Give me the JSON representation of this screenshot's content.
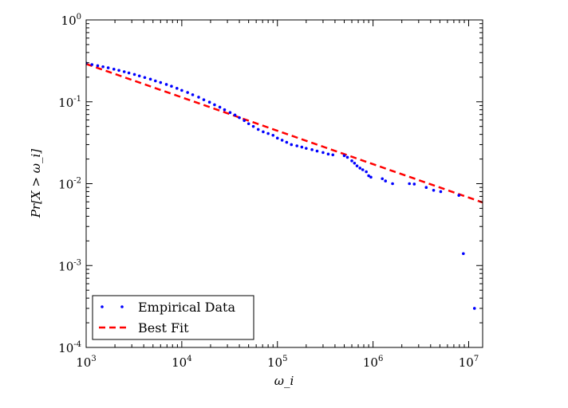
{
  "chart_data": {
    "type": "scatter",
    "title": "",
    "xlabel": "ω_i",
    "ylabel": "Pr[X > ω_i]",
    "xscale": "log",
    "yscale": "log",
    "xlim": [
      1000,
      14000000
    ],
    "ylim": [
      0.0001,
      1
    ],
    "x_ticks": [
      {
        "value": 1000,
        "base": "10",
        "exp": "3"
      },
      {
        "value": 10000,
        "base": "10",
        "exp": "4"
      },
      {
        "value": 100000,
        "base": "10",
        "exp": "5"
      },
      {
        "value": 1000000,
        "base": "10",
        "exp": "6"
      },
      {
        "value": 10000000,
        "base": "10",
        "exp": "7"
      }
    ],
    "y_ticks": [
      {
        "value": 0.0001,
        "base": "10",
        "exp": "-4"
      },
      {
        "value": 0.001,
        "base": "10",
        "exp": "-3"
      },
      {
        "value": 0.01,
        "base": "10",
        "exp": "-2"
      },
      {
        "value": 0.1,
        "base": "10",
        "exp": "-1"
      },
      {
        "value": 1,
        "base": "10",
        "exp": "0"
      }
    ],
    "legend": {
      "placement": "lower-left",
      "entries": [
        "Empirical Data",
        "Best Fit"
      ]
    },
    "series": [
      {
        "name": "Empirical Data",
        "style": "markers",
        "color": "#0000ff",
        "points": [
          [
            1000,
            0.297
          ],
          [
            1150,
            0.285
          ],
          [
            1320,
            0.276
          ],
          [
            1500,
            0.268
          ],
          [
            1700,
            0.26
          ],
          [
            1950,
            0.25
          ],
          [
            2200,
            0.242
          ],
          [
            2500,
            0.233
          ],
          [
            2800,
            0.225
          ],
          [
            3200,
            0.216
          ],
          [
            3600,
            0.207
          ],
          [
            4100,
            0.198
          ],
          [
            4700,
            0.189
          ],
          [
            5300,
            0.18
          ],
          [
            6000,
            0.172
          ],
          [
            6900,
            0.163
          ],
          [
            7800,
            0.155
          ],
          [
            8900,
            0.146
          ],
          [
            10000,
            0.138
          ],
          [
            11500,
            0.13
          ],
          [
            13000,
            0.122
          ],
          [
            15000,
            0.114
          ],
          [
            17000,
            0.106
          ],
          [
            19500,
            0.099
          ],
          [
            22000,
            0.092
          ],
          [
            25000,
            0.086
          ],
          [
            28000,
            0.08
          ],
          [
            32000,
            0.074
          ],
          [
            36000,
            0.069
          ],
          [
            40000,
            0.064
          ],
          [
            45000,
            0.059
          ],
          [
            50000,
            0.054
          ],
          [
            56000,
            0.05
          ],
          [
            63000,
            0.046
          ],
          [
            71000,
            0.043
          ],
          [
            80000,
            0.041
          ],
          [
            90000,
            0.039
          ],
          [
            100000,
            0.036
          ],
          [
            112000,
            0.034
          ],
          [
            125000,
            0.032
          ],
          [
            140000,
            0.03
          ],
          [
            160000,
            0.029
          ],
          [
            180000,
            0.028
          ],
          [
            200000,
            0.027
          ],
          [
            230000,
            0.026
          ],
          [
            260000,
            0.025
          ],
          [
            300000,
            0.024
          ],
          [
            340000,
            0.023
          ],
          [
            380000,
            0.0225
          ],
          [
            500000,
            0.022
          ],
          [
            540000,
            0.021
          ],
          [
            600000,
            0.019
          ],
          [
            640000,
            0.0178
          ],
          [
            680000,
            0.0165
          ],
          [
            730000,
            0.0155
          ],
          [
            780000,
            0.0148
          ],
          [
            850000,
            0.014
          ],
          [
            900000,
            0.0125
          ],
          [
            950000,
            0.012
          ],
          [
            1250000,
            0.0115
          ],
          [
            1350000,
            0.0108
          ],
          [
            1600000,
            0.01
          ],
          [
            2400000,
            0.01
          ],
          [
            2700000,
            0.0099
          ],
          [
            3600000,
            0.009
          ],
          [
            4300000,
            0.0083
          ],
          [
            5100000,
            0.008
          ],
          [
            7900000,
            0.0072
          ],
          [
            8800000,
            0.0014
          ],
          [
            11500000,
            0.0003
          ]
        ]
      },
      {
        "name": "Best Fit",
        "style": "dashed-line",
        "color": "#ff0000",
        "points": [
          [
            1000,
            0.29
          ],
          [
            14000000,
            0.0059
          ]
        ]
      }
    ]
  }
}
